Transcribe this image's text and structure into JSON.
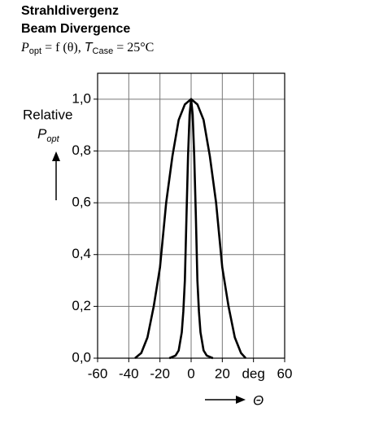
{
  "chart_data": {
    "type": "line",
    "title": "Strahldivergenz",
    "subtitle": "Beam Divergence",
    "formula": {
      "p": "P",
      "p_sub": "opt",
      "mid": " = f (θ), ",
      "t": "T",
      "t_sub": "Case",
      "end": " = 25°C"
    },
    "y_label": {
      "line1": "Relative",
      "symbol": "P",
      "sub": "opt"
    },
    "x_label": "Θ",
    "xlim": [
      -60,
      60
    ],
    "xticks": [
      -60,
      -40,
      -20,
      0,
      20,
      {
        "value": 40,
        "label": "deg"
      },
      60
    ],
    "ylim": [
      0,
      1.1
    ],
    "yticks": [
      {
        "value": 0,
        "label": "0,0"
      },
      {
        "value": 0.2,
        "label": "0,2"
      },
      {
        "value": 0.4,
        "label": "0,4"
      },
      {
        "value": 0.6,
        "label": "0,6"
      },
      {
        "value": 0.8,
        "label": "0,8"
      },
      {
        "value": 1.0,
        "label": "1,0"
      }
    ],
    "grid": true,
    "series": [
      {
        "color": "#000000",
        "x": [
          -36,
          -32,
          -28,
          -24,
          -20,
          -16,
          -12,
          -8,
          -4,
          0,
          4,
          8,
          12,
          16,
          20,
          24,
          28,
          32,
          35
        ],
        "values": [
          0,
          0.02,
          0.08,
          0.2,
          0.35,
          0.6,
          0.78,
          0.92,
          0.98,
          1.0,
          0.98,
          0.92,
          0.78,
          0.6,
          0.35,
          0.2,
          0.08,
          0.02,
          0
        ]
      },
      {
        "color": "#000000",
        "x": [
          -14,
          -10,
          -8,
          -6,
          -5,
          -4,
          -3,
          -2,
          -1,
          0,
          1,
          2,
          3,
          4,
          5,
          6,
          8,
          10,
          14
        ],
        "values": [
          0,
          0.01,
          0.03,
          0.1,
          0.18,
          0.3,
          0.55,
          0.78,
          0.94,
          1.0,
          0.94,
          0.78,
          0.55,
          0.3,
          0.18,
          0.1,
          0.03,
          0.01,
          0
        ]
      }
    ]
  }
}
